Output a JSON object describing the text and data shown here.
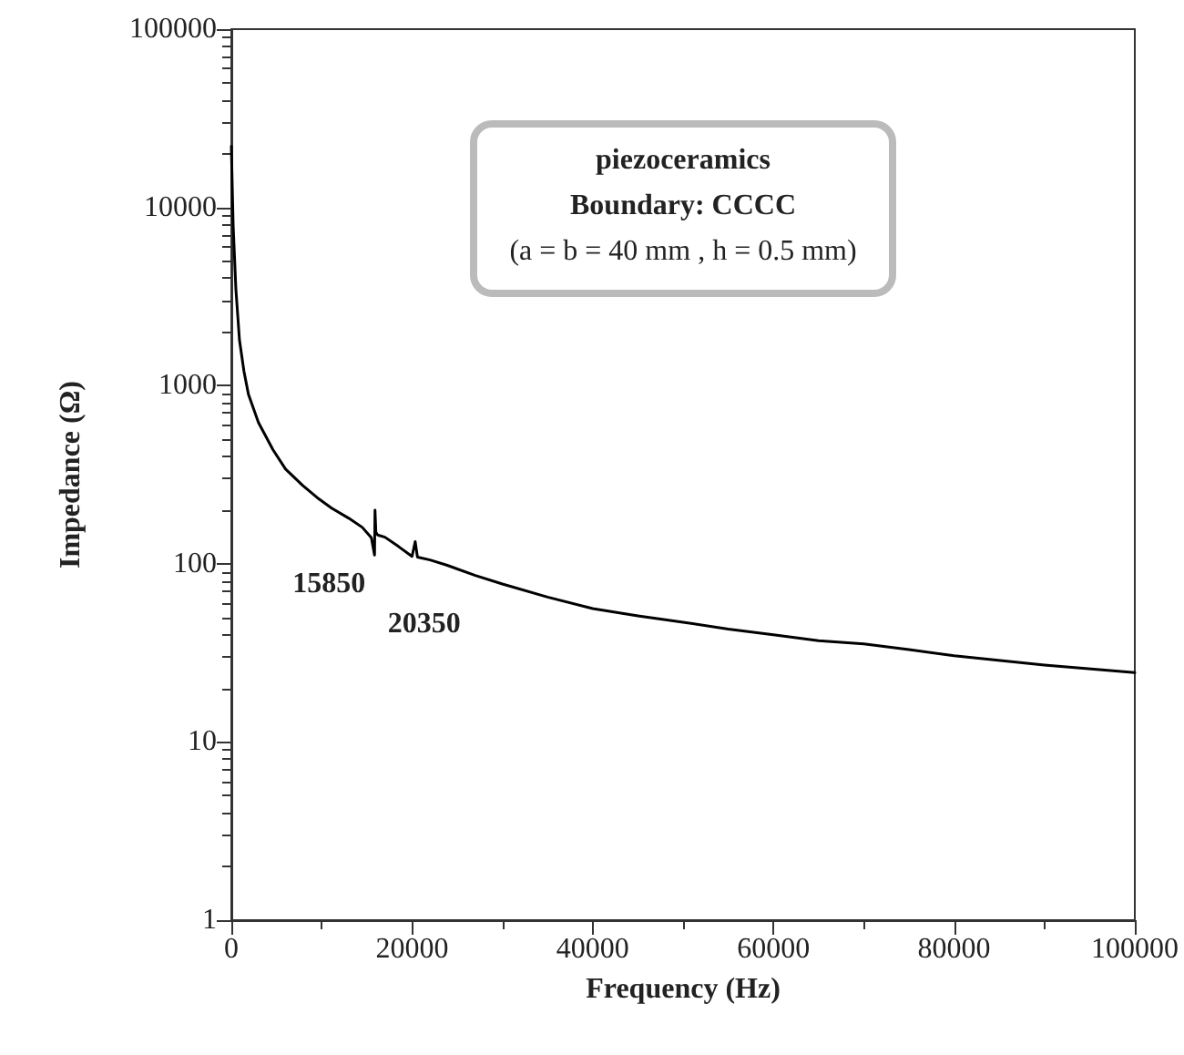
{
  "chart_data": {
    "type": "line",
    "xlabel": "Frequency (Hz)",
    "ylabel": "Impedance (Ω)",
    "log": "y",
    "grid": false,
    "marker": "none",
    "line_style": "solid",
    "xlim": [
      0,
      100000
    ],
    "xticks": [
      0,
      20000,
      40000,
      60000,
      80000,
      100000
    ],
    "ylim": [
      1,
      100000
    ],
    "yticks": [
      1,
      10,
      100,
      1000,
      10000,
      100000
    ],
    "annotations": [
      "piezoceramics",
      "Boundary: CCCC",
      "(a = b = 40 mm , h = 0.5 mm)",
      {
        "text": "15850",
        "x": 15850,
        "y": 112
      },
      {
        "text": "20350",
        "x": 20350,
        "y": 133
      }
    ],
    "series": [
      {
        "color": "#000000",
        "x": [
          0,
          200,
          500,
          900,
          1400,
          1900,
          3000,
          4600,
          6000,
          7900,
          9500,
          11100,
          13000,
          14500,
          15500,
          15850,
          15900,
          16000,
          16200,
          17000,
          18500,
          20000,
          20350,
          20600,
          22000,
          23900,
          27000,
          30000,
          35000,
          40000,
          45000,
          50000,
          55000,
          60000,
          65000,
          70000,
          75000,
          80000,
          90000,
          100000
        ],
        "values": [
          22000,
          8000,
          3500,
          1800,
          1200,
          890,
          620,
          437,
          340,
          275,
          235,
          205,
          180,
          160,
          140,
          112,
          200,
          150,
          145,
          141,
          125,
          110,
          133,
          109,
          105,
          98,
          86,
          77,
          65,
          56,
          51,
          47,
          43,
          40,
          37,
          35.5,
          33,
          30.5,
          27,
          24.5
        ]
      }
    ]
  }
}
